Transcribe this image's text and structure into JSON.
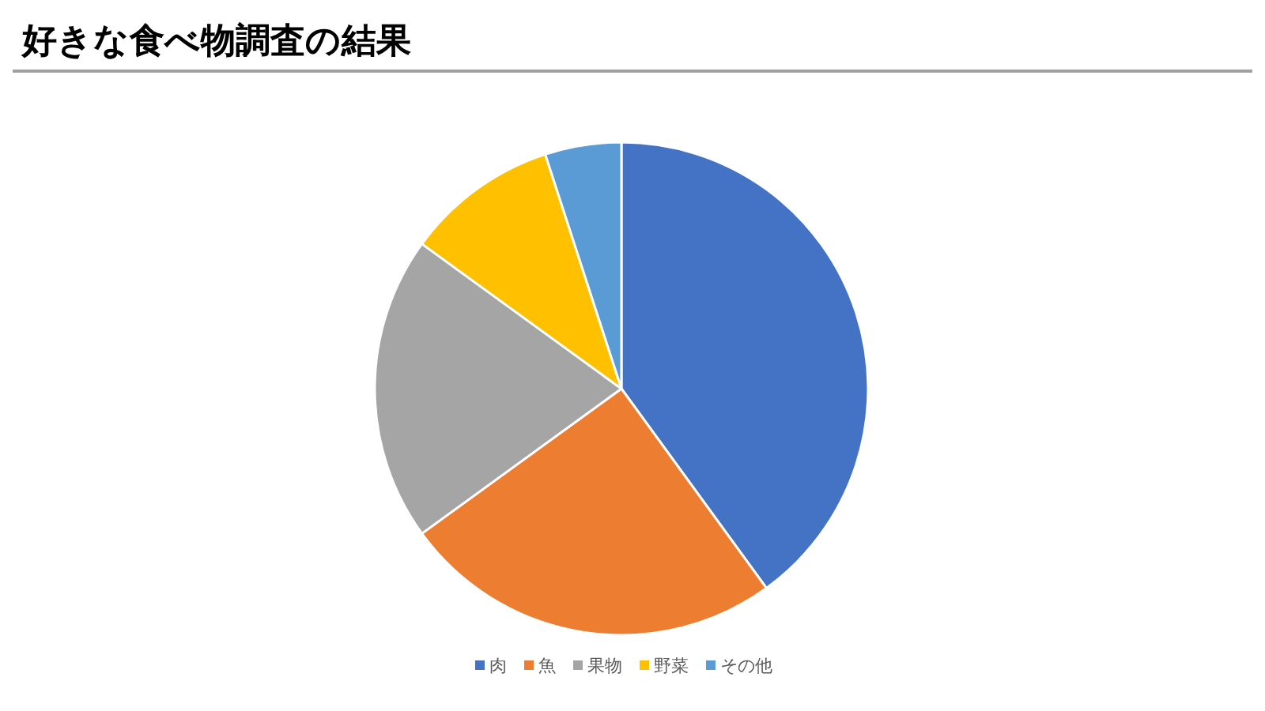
{
  "chart_data": {
    "type": "pie",
    "title": "好きな食べ物調査の結果",
    "categories": [
      "肉",
      "魚",
      "果物",
      "野菜",
      "その他"
    ],
    "values": [
      40,
      25,
      20,
      10,
      5
    ],
    "colors": [
      "#4472c4",
      "#ed7d31",
      "#a5a5a5",
      "#ffc000",
      "#5b9bd5"
    ],
    "legend": "bottom"
  }
}
